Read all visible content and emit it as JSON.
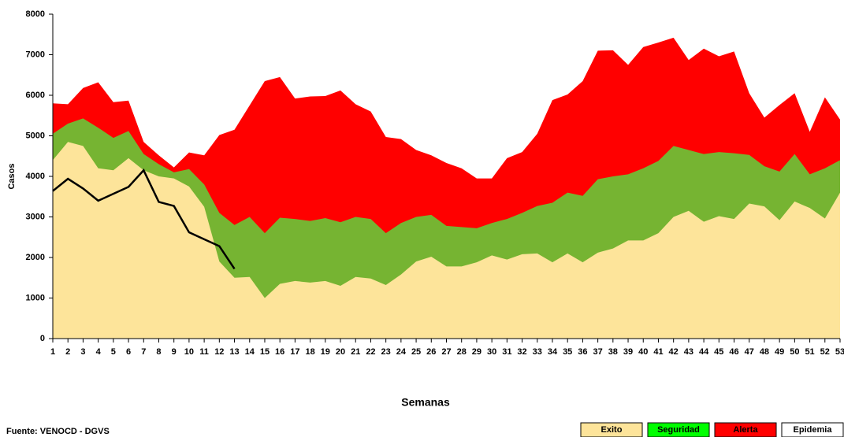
{
  "chart_data": {
    "type": "area",
    "stacked": false,
    "x_label": "Semanas",
    "y_label": "Casos",
    "source": "Fuente: VENOCD - DGVS",
    "x": [
      1,
      2,
      3,
      4,
      5,
      6,
      7,
      8,
      9,
      10,
      11,
      12,
      13,
      14,
      15,
      16,
      17,
      18,
      19,
      20,
      21,
      22,
      23,
      24,
      25,
      26,
      27,
      28,
      29,
      30,
      31,
      32,
      33,
      34,
      35,
      36,
      37,
      38,
      39,
      40,
      41,
      42,
      43,
      44,
      45,
      46,
      47,
      48,
      49,
      50,
      51,
      52,
      53
    ],
    "xlim": [
      1,
      53
    ],
    "ylim": [
      0,
      8000
    ],
    "yticks": [
      0,
      1000,
      2000,
      3000,
      4000,
      5000,
      6000,
      7000,
      8000
    ],
    "series": [
      {
        "name": "Alerta",
        "color": "#ff0000",
        "values": [
          5800,
          5780,
          6180,
          6320,
          5830,
          5870,
          4850,
          4520,
          4220,
          4590,
          4520,
          5020,
          5150,
          5750,
          6350,
          6450,
          5920,
          5970,
          5980,
          6120,
          5780,
          5600,
          4970,
          4920,
          4650,
          4520,
          4330,
          4200,
          3950,
          3950,
          4450,
          4600,
          5050,
          5880,
          6020,
          6350,
          7100,
          7110,
          6750,
          7190,
          7300,
          7420,
          6870,
          7150,
          6960,
          7080,
          6050,
          5450,
          5760,
          6050,
          5100,
          5950,
          5400
        ]
      },
      {
        "name": "Seguridad",
        "color": "#76b432",
        "legend_color": "#00ff00",
        "values": [
          5050,
          5300,
          5430,
          5200,
          4950,
          5120,
          4550,
          4300,
          4100,
          4180,
          3800,
          3100,
          2800,
          3000,
          2600,
          2980,
          2950,
          2900,
          2970,
          2870,
          3000,
          2950,
          2600,
          2850,
          3000,
          3050,
          2780,
          2750,
          2720,
          2850,
          2950,
          3100,
          3270,
          3350,
          3600,
          3520,
          3930,
          4000,
          4050,
          4200,
          4380,
          4750,
          4650,
          4550,
          4600,
          4570,
          4530,
          4250,
          4120,
          4550,
          4050,
          4200,
          4400
        ]
      },
      {
        "name": "Exito",
        "color": "#fde49a",
        "values": [
          4400,
          4850,
          4750,
          4200,
          4150,
          4450,
          4150,
          4000,
          3950,
          3750,
          3250,
          1900,
          1500,
          1520,
          1000,
          1350,
          1420,
          1380,
          1420,
          1300,
          1520,
          1480,
          1320,
          1580,
          1900,
          2020,
          1780,
          1780,
          1880,
          2050,
          1950,
          2080,
          2100,
          1880,
          2100,
          1880,
          2120,
          2220,
          2420,
          2420,
          2600,
          3000,
          3150,
          2880,
          3020,
          2950,
          3330,
          3260,
          2920,
          3380,
          3220,
          2960,
          3600
        ]
      },
      {
        "type": "line",
        "color": "#000000",
        "values": [
          3640,
          3940,
          3700,
          3400,
          3570,
          3740,
          4150,
          3370,
          3270,
          2620,
          2450,
          2280,
          1720,
          null,
          null,
          null,
          null,
          null,
          null,
          null,
          null,
          null,
          null,
          null,
          null,
          null,
          null,
          null,
          null,
          null,
          null,
          null,
          null,
          null,
          null,
          null,
          null,
          null,
          null,
          null,
          null,
          null,
          null,
          null,
          null,
          null,
          null,
          null,
          null,
          null,
          null,
          null,
          null
        ]
      }
    ],
    "legend": [
      {
        "name": "Exito",
        "color": "#fde49a"
      },
      {
        "name": "Seguridad",
        "color": "#00ff00"
      },
      {
        "name": "Alerta",
        "color": "#ff0000"
      },
      {
        "name": "Epidemia",
        "color": "#ffffff"
      }
    ]
  }
}
